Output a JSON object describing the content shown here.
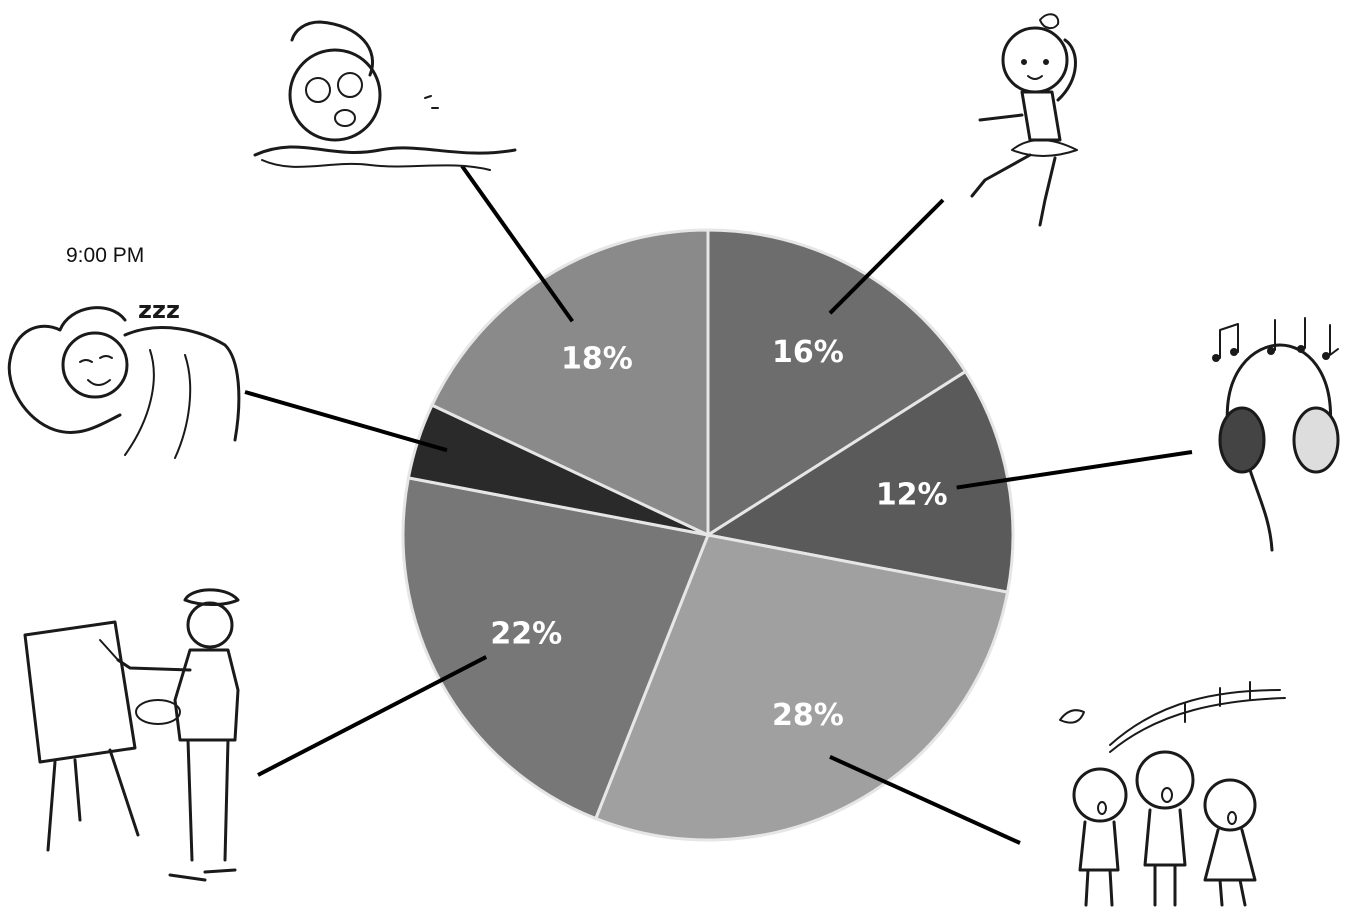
{
  "chart_data": {
    "type": "pie",
    "start_angle_deg": 0,
    "direction": "clockwise",
    "slices": [
      {
        "label": "16%",
        "value": 16,
        "color": "#6d6d6d",
        "icon": "ballet-dancer-icon"
      },
      {
        "label": "12%",
        "value": 12,
        "color": "#5a5a5a",
        "icon": "headphones-music-icon"
      },
      {
        "label": "28%",
        "value": 28,
        "color": "#a0a0a0",
        "icon": "children-singing-icon"
      },
      {
        "label": "22%",
        "value": 22,
        "color": "#777777",
        "icon": "painter-easel-icon"
      },
      {
        "label": "",
        "value": 4,
        "color": "#2a2a2a",
        "icon": "sleeping-person-icon"
      },
      {
        "label": "18%",
        "value": 18,
        "color": "#8a8a8a",
        "icon": "swimmer-icon"
      }
    ]
  },
  "annotations": {
    "time_label": "9:00 PM",
    "sleep_text": "zzz"
  }
}
